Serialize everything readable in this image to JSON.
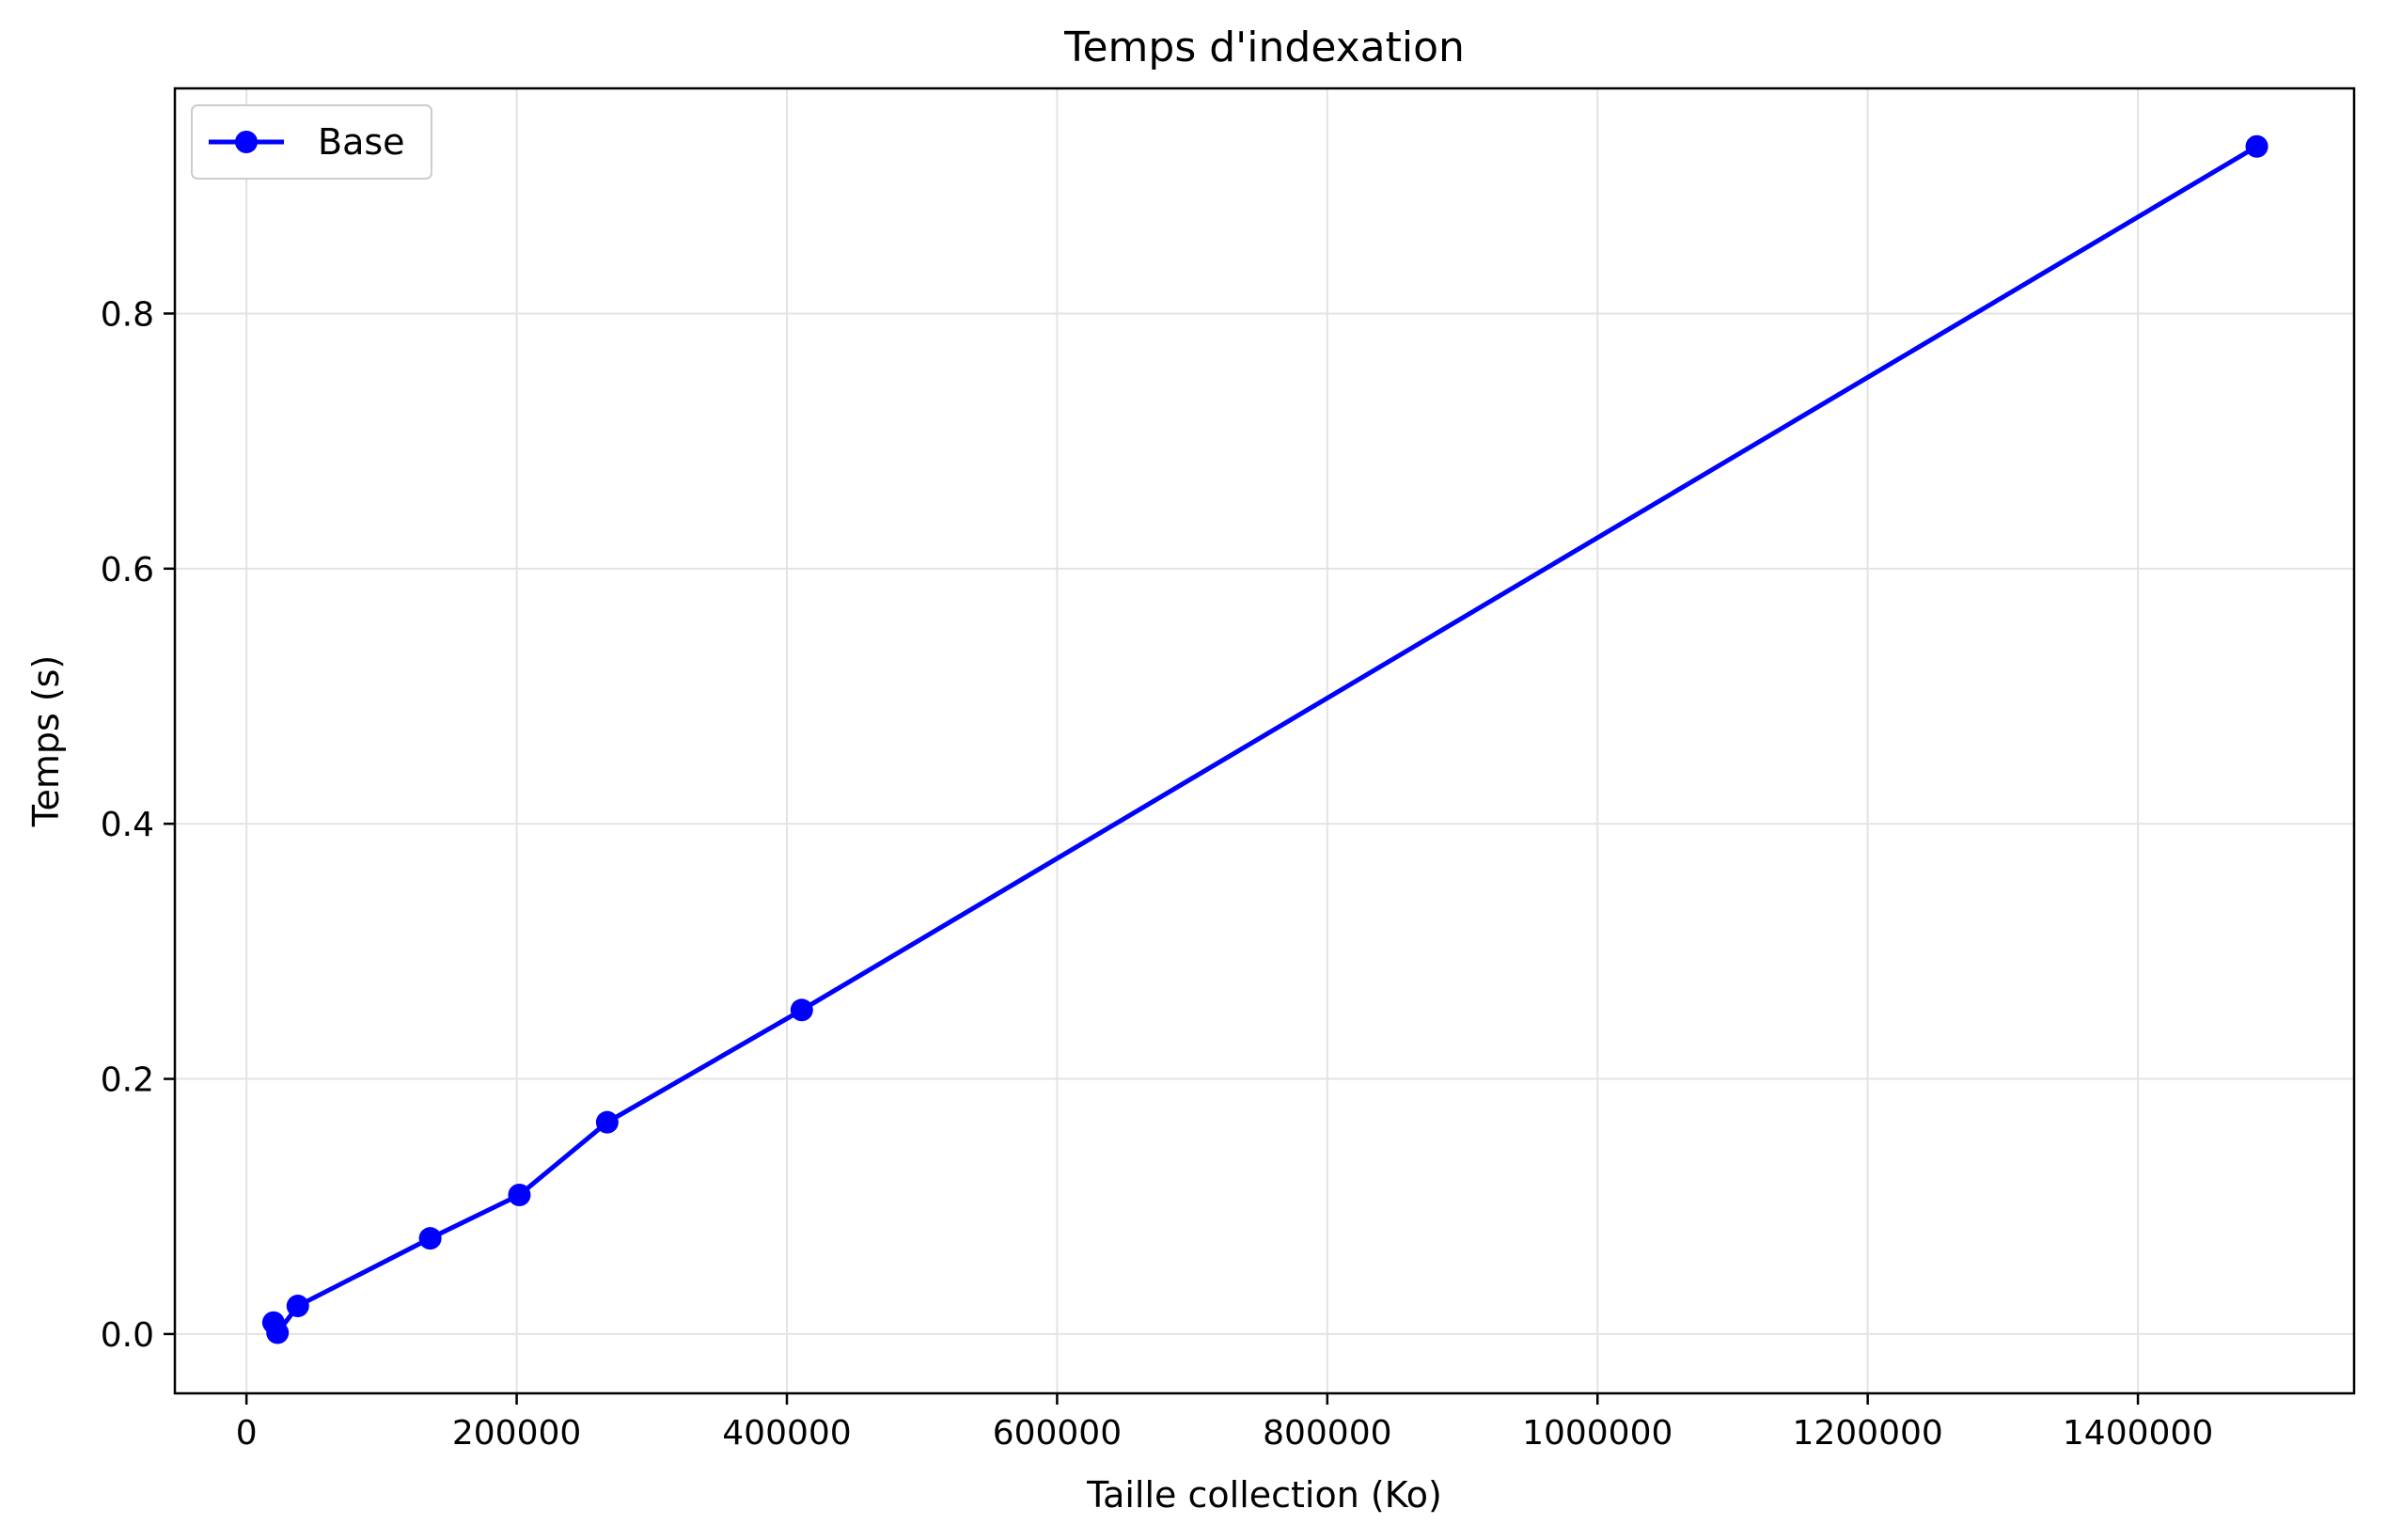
{
  "chart_data": {
    "type": "line",
    "title": "Temps d'indexation",
    "xlabel": "Taille collection (Ko)",
    "ylabel": "Temps (s)",
    "xlim": [
      -53000,
      1560000
    ],
    "ylim": [
      -0.0465,
      0.9765
    ],
    "xticks": [
      0,
      200000,
      400000,
      600000,
      800000,
      1000000,
      1200000,
      1400000
    ],
    "yticks": [
      0.0,
      0.2,
      0.4,
      0.6,
      0.8
    ],
    "grid": true,
    "legend_position": "upper-left",
    "series": [
      {
        "name": "Base",
        "color": "#0000ff",
        "marker": "circle",
        "x": [
          20000,
          23000,
          38000,
          136000,
          202000,
          267000,
          411000,
          1488000
        ],
        "y": [
          0.009,
          0.001,
          0.022,
          0.075,
          0.109,
          0.166,
          0.254,
          0.931
        ]
      }
    ]
  }
}
